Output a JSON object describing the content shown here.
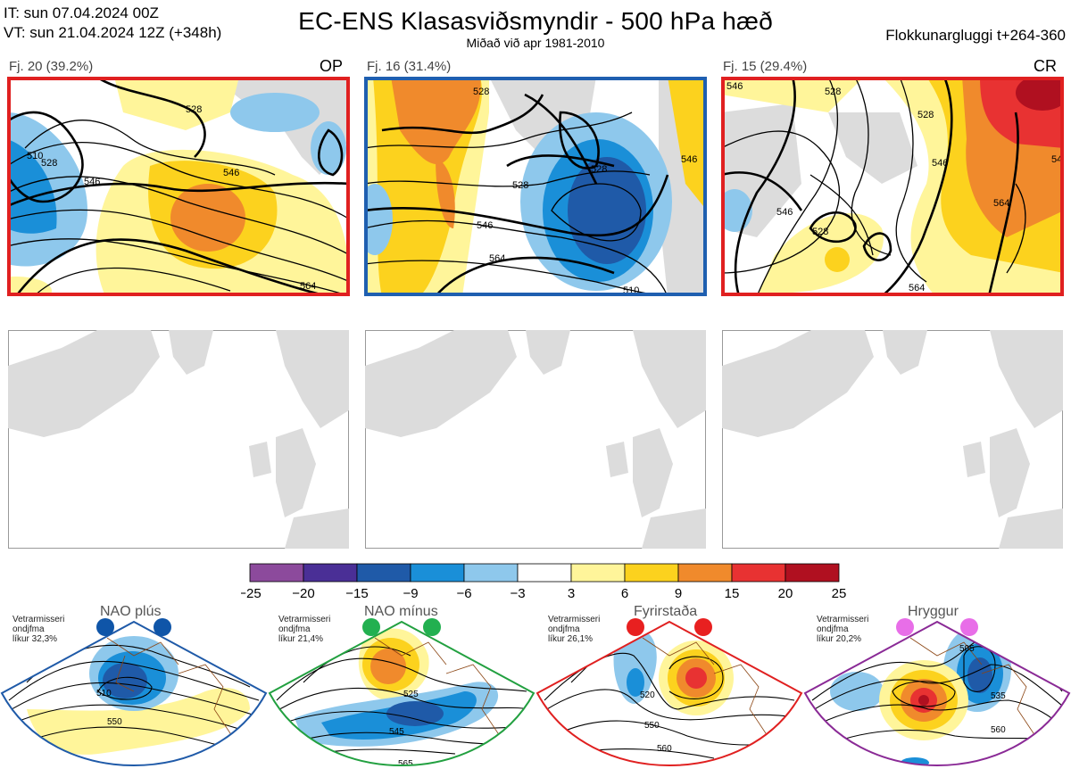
{
  "header": {
    "it_line": "IT: sun 07.04.2024 00Z",
    "vt_line": "VT: sun 21.04.2024 12Z  (+348h)",
    "title": "EC-ENS Klasasviðsmyndir - 500 hPa hæð",
    "subtitle": "Miðað við apr 1981-2010",
    "window": "Flokkunargluggi t+264-360"
  },
  "clusters": [
    {
      "label": "Fj. 20 (39.2%)",
      "tag": "OP",
      "border_color": "#e02020",
      "contours": [
        "510",
        "528",
        "546",
        "546",
        "528",
        "564"
      ]
    },
    {
      "label": "Fj. 16 (31.4%)",
      "tag": "",
      "border_color": "#1f5fb0",
      "contours": [
        "528",
        "528",
        "528",
        "546",
        "564",
        "546",
        "510"
      ]
    },
    {
      "label": "Fj. 15 (29.4%)",
      "tag": "CR",
      "border_color": "#e02020",
      "contours": [
        "546",
        "528",
        "528",
        "546",
        "564",
        "528",
        "546",
        "564",
        "546"
      ]
    }
  ],
  "colorbar": {
    "ticks": [
      "−25",
      "−20",
      "−15",
      "−9",
      "−6",
      "−3",
      "3",
      "6",
      "9",
      "15",
      "20",
      "25"
    ],
    "colors": [
      "#8c4a9c",
      "#4a2f96",
      "#1f5aa8",
      "#1a8fd8",
      "#8ec8ec",
      "#ffffff",
      "#fff59a",
      "#fcd21e",
      "#f08a2c",
      "#e83232",
      "#b01020"
    ]
  },
  "regimes": [
    {
      "title": "NAO plús",
      "info": [
        "Vetrarmisseri",
        "ondjfma",
        "líkur 32,3%"
      ],
      "color": "#1f5aa8",
      "dot_color": "#0f55a8",
      "contours": [
        "510",
        "550"
      ]
    },
    {
      "title": "NAO mínus",
      "info": [
        "Vetrarmisseri",
        "ondjfma",
        "líkur 21,4%"
      ],
      "color": "#22a040",
      "dot_color": "#22b050",
      "contours": [
        "525",
        "545",
        "565"
      ]
    },
    {
      "title": "Fyrirstaða",
      "info": [
        "Vetrarmisseri",
        "ondjfma",
        "líkur 26,1%"
      ],
      "color": "#e02020",
      "dot_color": "#e82020",
      "contours": [
        "520",
        "550",
        "560"
      ]
    },
    {
      "title": "Hryggur",
      "info": [
        "Vetrarmisseri",
        "ondjfma",
        "líkur 20,2%"
      ],
      "color": "#8a2a96",
      "dot_color": "#e86ee8",
      "contours": [
        "505",
        "535",
        "560"
      ]
    }
  ]
}
